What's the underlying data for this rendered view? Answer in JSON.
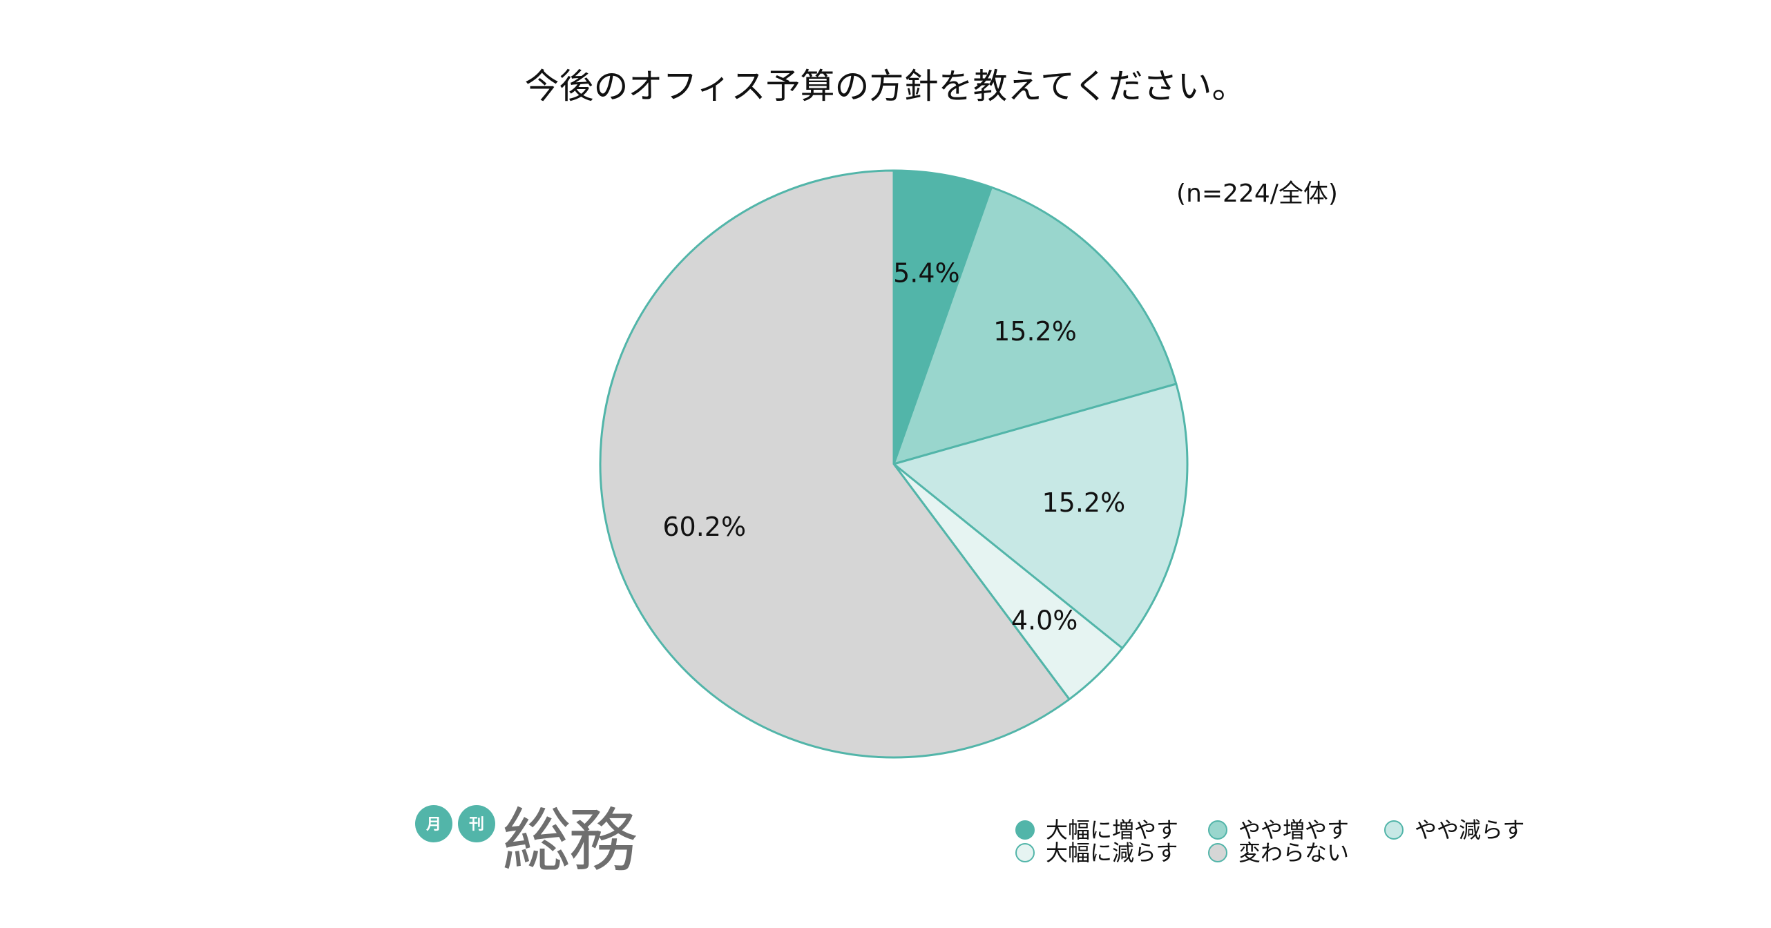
{
  "title": "今後のオフィス予算の方針を教えてください。",
  "sample_note": "(n=224/全体)",
  "logo": {
    "badge_1": "月",
    "badge_2": "刊",
    "name": "総務",
    "badge_color": "#52b5a9",
    "text_color": "#6e6e6e"
  },
  "colors": {
    "outline": "#52b5a9",
    "background": "#ffffff"
  },
  "chart_data": {
    "type": "pie",
    "title": "今後のオフィス予算の方針を教えてください。",
    "start_angle_deg": 0,
    "direction": "clockwise",
    "legend_position": "bottom-right",
    "slices": [
      {
        "label": "大幅に増やす",
        "value": 5.4,
        "display": "5.4%",
        "color": "#52b5a9"
      },
      {
        "label": "やや増やす",
        "value": 15.2,
        "display": "15.2%",
        "color": "#99d6cd"
      },
      {
        "label": "やや減らす",
        "value": 15.2,
        "display": "15.2%",
        "color": "#c7e8e5"
      },
      {
        "label": "大幅に減らす",
        "value": 4.0,
        "display": "4.0%",
        "color": "#e6f4f2"
      },
      {
        "label": "変わらない",
        "value": 60.2,
        "display": "60.2%",
        "color": "#d6d6d6"
      }
    ]
  }
}
